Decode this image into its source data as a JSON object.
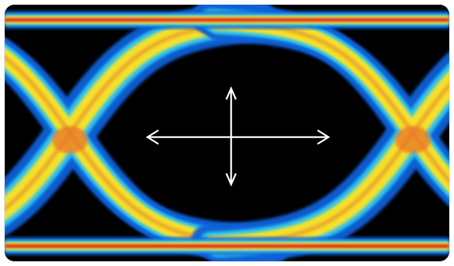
{
  "chart_data": {
    "type": "eye-diagram",
    "title": "",
    "xlabel": "",
    "ylabel": "",
    "grid": false,
    "legend": "none",
    "colors": {
      "background": "#000000",
      "low_density": "#0f5fd6",
      "mid_density": "#2ec6f0",
      "high_density": "#f3e12a",
      "peak_density": "#e8752a",
      "max_density": "#e0271c",
      "markers": "#ffffff"
    },
    "annotations": [
      {
        "name": "eye-width-arrow",
        "orientation": "horizontal"
      },
      {
        "name": "eye-height-arrow",
        "orientation": "vertical"
      }
    ]
  }
}
